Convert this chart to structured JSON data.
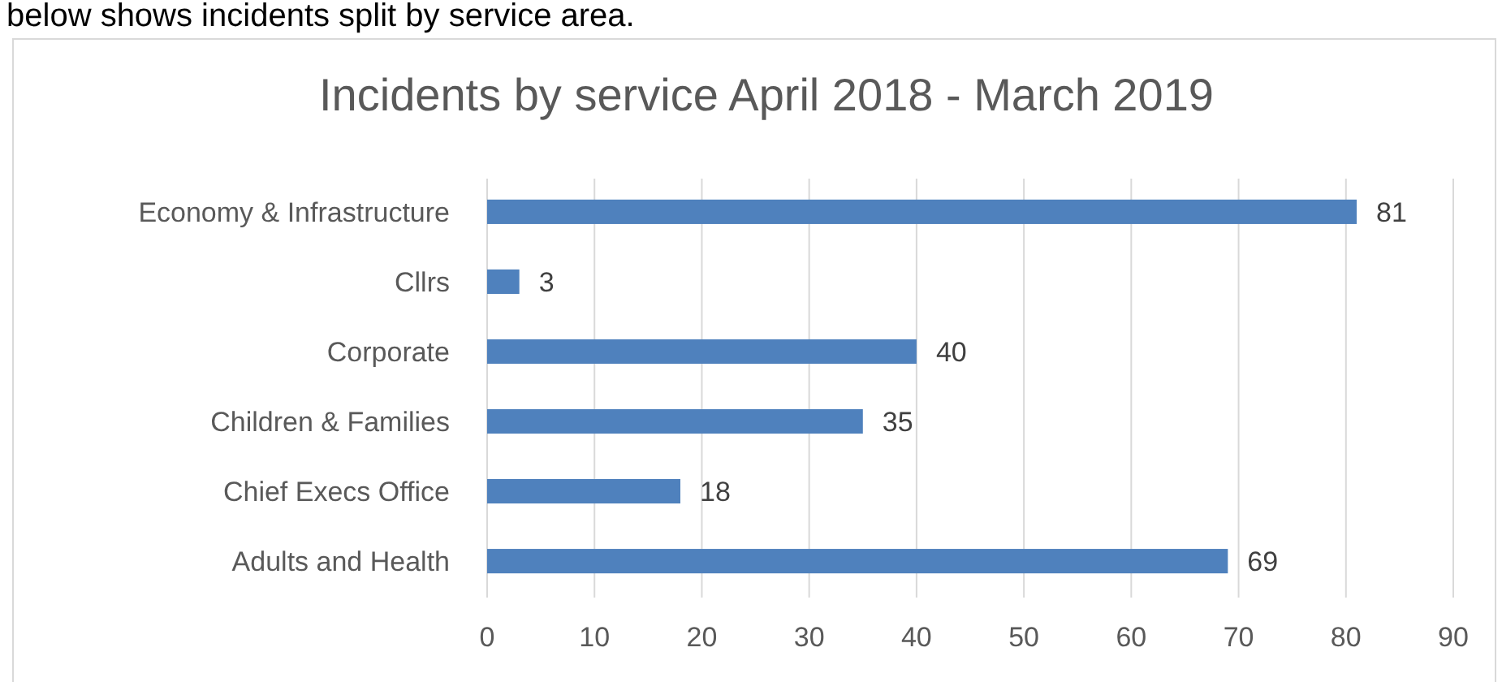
{
  "chart_data": {
    "type": "bar",
    "orientation": "horizontal",
    "title": "Incidents by service April 2018 - March 2019",
    "annotations": [
      "below shows incidents split by service area."
    ],
    "categories": [
      "Economy & Infrastructure",
      "Cllrs",
      "Corporate",
      "Children & Families",
      "Chief Execs Office",
      "Adults and Health"
    ],
    "values": [
      81,
      3,
      40,
      35,
      18,
      69
    ],
    "color": "#4f81bd",
    "xlim": [
      0,
      90
    ],
    "xticks": [
      0,
      10,
      20,
      30,
      40,
      50,
      60,
      70,
      80,
      90
    ],
    "grid": "x",
    "data_labels": true
  }
}
